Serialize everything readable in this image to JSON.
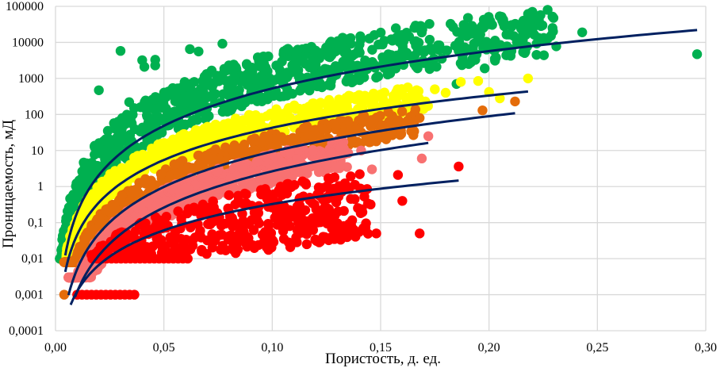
{
  "chart_data": {
    "type": "scatter",
    "title": "",
    "xlabel": "Пористость, д. ед.",
    "ylabel": "Проницаемость, мД",
    "xlim": [
      0,
      0.3
    ],
    "ylim": [
      0.0001,
      100000
    ],
    "yscale": "log",
    "grid": true,
    "legend": "none",
    "x_ticks": [
      "0,00",
      "0,05",
      "0,10",
      "0,15",
      "0,20",
      "0,25",
      "0,30"
    ],
    "x_tick_values": [
      0,
      0.05,
      0.1,
      0.15,
      0.2,
      0.25,
      0.3
    ],
    "y_ticks": [
      "100000",
      "10000",
      "1000",
      "100",
      "10",
      "1",
      "0,1",
      "0,01",
      "0,001",
      "0,0001"
    ],
    "y_tick_values": [
      100000,
      10000,
      1000,
      100,
      10,
      1,
      0.1,
      0.01,
      0.001,
      0.0001
    ],
    "series": [
      {
        "name": "class-1-green",
        "color": "#00b050",
        "porosity_range": [
          0.002,
          0.296
        ],
        "trend": {
          "type": "power",
          "a": 1450000,
          "b": 3.44,
          "x_range": [
            0.0045,
            0.296
          ]
        },
        "outliers": [
          [
            0.03,
            5800
          ],
          [
            0.04,
            3200
          ],
          [
            0.041,
            2100
          ],
          [
            0.046,
            3300
          ],
          [
            0.046,
            2300
          ],
          [
            0.062,
            6500
          ],
          [
            0.066,
            5600
          ],
          [
            0.077,
            9200
          ],
          [
            0.064,
            800
          ],
          [
            0.08,
            2300
          ],
          [
            0.092,
            950
          ],
          [
            0.108,
            5900
          ],
          [
            0.112,
            1700
          ],
          [
            0.12,
            2400
          ],
          [
            0.126,
            4000
          ],
          [
            0.137,
            2000
          ],
          [
            0.155,
            1800
          ],
          [
            0.162,
            4300
          ],
          [
            0.185,
            700
          ],
          [
            0.198,
            1900
          ],
          [
            0.222,
            9300
          ],
          [
            0.243,
            19000
          ],
          [
            0.296,
            4700
          ],
          [
            0.034,
            220
          ],
          [
            0.02,
            470
          ]
        ],
        "band": {
          "low_decades_below_trend": -0.3,
          "high_decades_above_trend": 1.0
        }
      },
      {
        "name": "class-2-yellow",
        "color": "#ffff00",
        "porosity_range": [
          0.005,
          0.219
        ],
        "trend": {
          "type": "power",
          "a": 40000,
          "b": 2.97,
          "x_range": [
            0.0045,
            0.218
          ]
        },
        "outliers": [
          [
            0.187,
            800
          ],
          [
            0.195,
            850
          ],
          [
            0.2,
            420
          ],
          [
            0.205,
            280
          ],
          [
            0.218,
            1000
          ],
          [
            0.165,
            300
          ],
          [
            0.175,
            500
          ],
          [
            0.18,
            400
          ]
        ],
        "band": {
          "low_decades_below_trend": -0.2,
          "high_decades_above_trend": 0.5
        }
      },
      {
        "name": "class-3-orange",
        "color": "#e46c0a",
        "porosity_range": [
          0.004,
          0.212
        ],
        "trend": {
          "type": "power",
          "a": 17000,
          "b": 3.26,
          "x_range": [
            0.006,
            0.212
          ]
        },
        "outliers": [
          [
            0.168,
            80
          ],
          [
            0.197,
            130
          ],
          [
            0.212,
            230
          ],
          [
            0.004,
            0.001
          ]
        ],
        "band": {
          "low_decades_below_trend": -0.3,
          "high_decades_above_trend": 0.5
        }
      },
      {
        "name": "class-4-pink",
        "color": "#f87171",
        "porosity_range": [
          0.006,
          0.172
        ],
        "trend": {
          "type": "power",
          "a": 5800,
          "b": 3.34,
          "x_range": [
            0.009,
            0.172
          ]
        },
        "outliers": [
          [
            0.172,
            25
          ],
          [
            0.141,
            10
          ],
          [
            0.125,
            4
          ],
          [
            0.146,
            3
          ],
          [
            0.169,
            6
          ],
          [
            0.105,
            2.5
          ]
        ],
        "band": {
          "low_decades_below_trend": -0.35,
          "high_decades_above_trend": 0.5
        }
      },
      {
        "name": "class-5-red",
        "color": "#ff0000",
        "porosity_range": [
          0.006,
          0.186
        ],
        "trend": {
          "type": "power",
          "a": 86,
          "b": 2.42,
          "x_range": [
            0.007,
            0.186
          ]
        },
        "outliers": [
          [
            0.186,
            3.6
          ],
          [
            0.158,
            2.1
          ],
          [
            0.13,
            0.05
          ],
          [
            0.142,
            0.07
          ],
          [
            0.148,
            0.05
          ],
          [
            0.168,
            0.05
          ],
          [
            0.16,
            0.4
          ],
          [
            0.098,
            0.3
          ],
          [
            0.112,
            0.1
          ]
        ],
        "floor_rows": [
          {
            "k": 0.01,
            "x_range": [
              0.017,
              0.063
            ]
          },
          {
            "k": 0.001,
            "x_range": [
              0.01,
              0.038
            ]
          }
        ],
        "band": {
          "low_decades_below_trend": -1.3,
          "high_decades_above_trend": 0.5
        }
      }
    ],
    "trendline_color": "#002060"
  }
}
